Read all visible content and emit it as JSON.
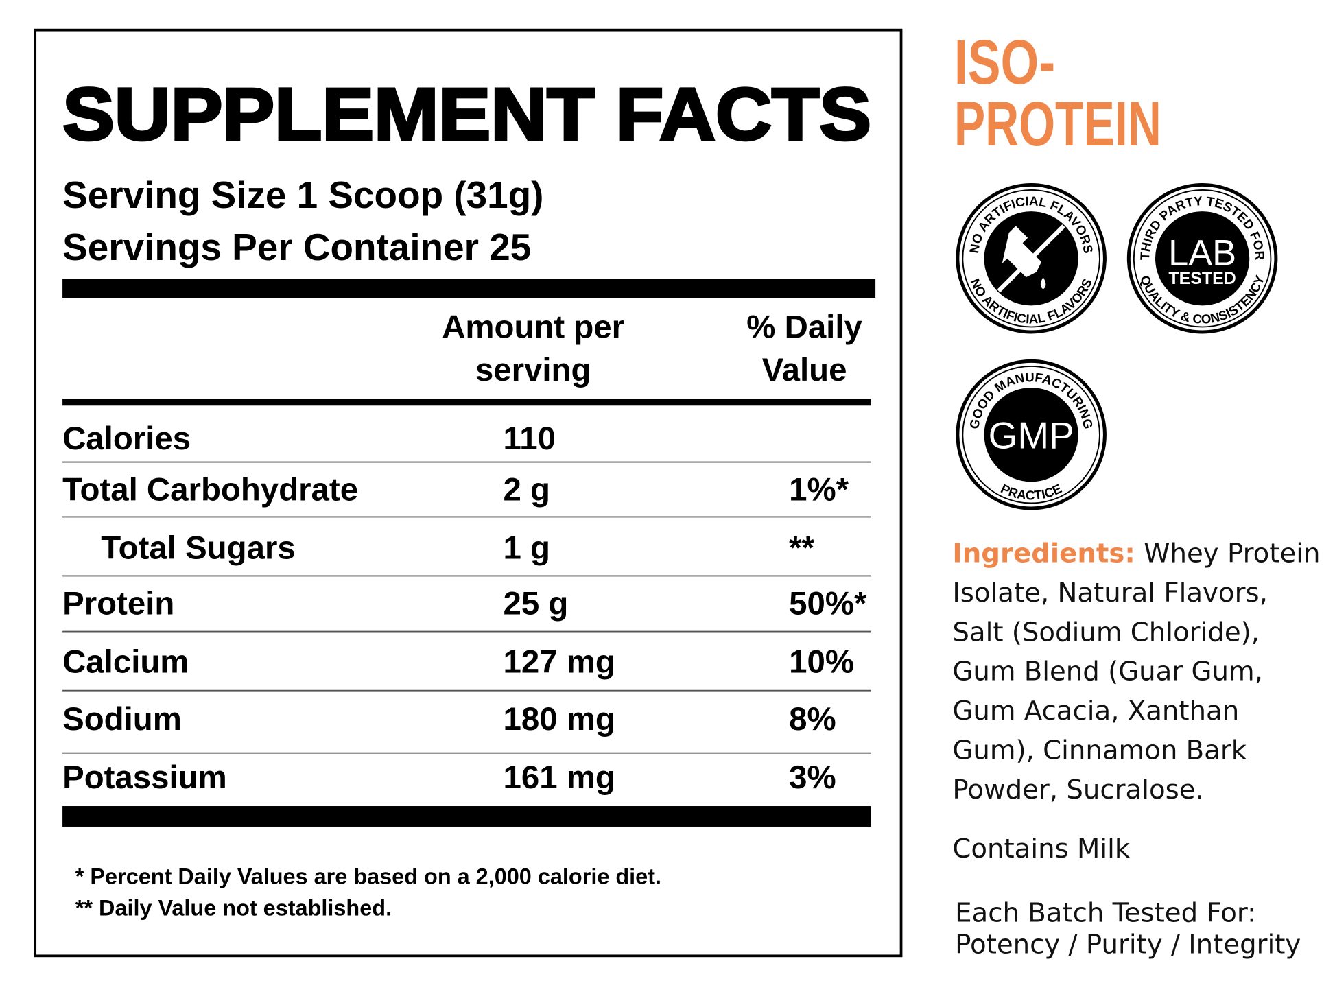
{
  "label": {
    "title": "SUPPLEMENT FACTS",
    "serving_size": "Serving Size 1 Scoop (31g)",
    "servings_per_container": "Servings Per Container 25",
    "header": {
      "amount": [
        "Amount per",
        "serving"
      ],
      "daily_value": [
        "% Daily",
        "Value"
      ]
    },
    "rows": [
      {
        "name": "Calories",
        "amount": "110"
      },
      {
        "name": "Total Carbohydrate",
        "amount": "2 g",
        "daily_value": "1%*"
      },
      {
        "name": "Total Sugars",
        "amount": "1 g",
        "daily_value": "**",
        "level": 1
      },
      {
        "name": "Protein",
        "amount": "25 g",
        "daily_value": "50%*"
      },
      {
        "name": "Calcium",
        "amount": "127 mg",
        "daily_value": "10%"
      },
      {
        "name": "Sodium",
        "amount": "180 mg",
        "daily_value": "8%"
      },
      {
        "name": "Potassium",
        "amount": "161 mg",
        "daily_value": "3%"
      }
    ],
    "footnotes": [
      "* Percent Daily Values are based on a 2,000 calorie diet.",
      "** Daily Value not established."
    ]
  },
  "product": {
    "title": [
      "ISO-",
      "PROTEIN"
    ]
  },
  "badges": [
    {
      "top": "NO ARTIFICIAL FLAVORS",
      "bottom": "NO ARTIFICIAL FLAVORS"
    },
    {
      "top": "THIRD PARTY TESTED FOR",
      "center": [
        "LAB",
        "TESTED"
      ],
      "bottom": "QUALITY & CONSISTENCY"
    },
    {
      "top": "GOOD MANUFACTURING",
      "center": [
        "GMP"
      ],
      "bottom": "PRACTICE"
    }
  ],
  "ingredients": {
    "label": "Ingredients:",
    "lines": [
      "Whey Protein",
      "Isolate, Natural Flavors,",
      "Salt (Sodium Chloride),",
      "Gum Blend (Guar Gum,",
      "Gum Acacia, Xanthan",
      "Gum), Cinnamon Bark",
      "Powder, Sucralose."
    ]
  },
  "allergens": "Contains Milk",
  "testing": [
    "Each Batch Tested For:",
    "Potency / Purity / Integrity"
  ]
}
